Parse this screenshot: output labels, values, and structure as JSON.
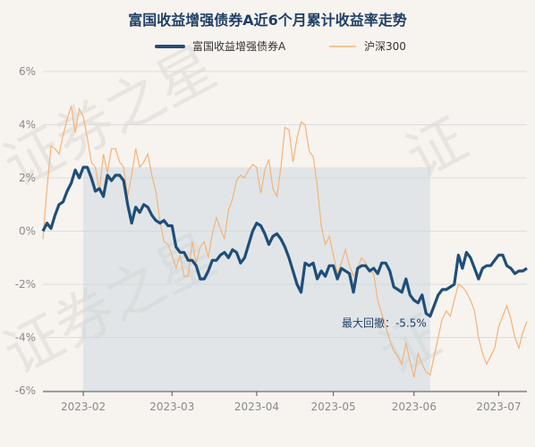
{
  "chart_data": {
    "type": "line",
    "title": "富国收益增强债券A近6个月累计收益率走势",
    "xlabel": "",
    "ylabel": "",
    "ylim": [
      -6,
      6
    ],
    "y_ticks": [
      "6%",
      "4%",
      "2%",
      "0%",
      "-2%",
      "-4%",
      "-6%"
    ],
    "x_tick_labels": [
      "2023-02",
      "2023-03",
      "2023-04",
      "2023-05",
      "2023-06",
      "2023-07"
    ],
    "x_range": [
      0,
      120
    ],
    "x_tick_positions": [
      10,
      32,
      53,
      72,
      92,
      113
    ],
    "legend_position": "top-center",
    "grid": true,
    "colors": {
      "fund": "#1f4e79",
      "index": "#f2b47a",
      "drawdown": "#c5d4de",
      "title": "#1f3f66"
    },
    "annotation": {
      "text": "最大回撤：-5.5%"
    },
    "drawdown_region": {
      "x_start": 10,
      "x_end": 96
    },
    "series": [
      {
        "name": "富国收益增强债券A",
        "x": [
          0,
          1,
          2,
          3,
          4,
          5,
          6,
          7,
          8,
          9,
          10,
          11,
          12,
          13,
          14,
          15,
          16,
          17,
          18,
          19,
          20,
          21,
          22,
          23,
          24,
          25,
          26,
          27,
          28,
          29,
          30,
          31,
          32,
          33,
          34,
          35,
          36,
          37,
          38,
          39,
          40,
          41,
          42,
          43,
          44,
          45,
          46,
          47,
          48,
          49,
          50,
          51,
          52,
          53,
          54,
          55,
          56,
          57,
          58,
          59,
          60,
          61,
          62,
          63,
          64,
          65,
          66,
          67,
          68,
          69,
          70,
          71,
          72,
          73,
          74,
          75,
          76,
          77,
          78,
          79,
          80,
          81,
          82,
          83,
          84,
          85,
          86,
          87,
          88,
          89,
          90,
          91,
          92,
          93,
          94,
          95,
          96,
          97,
          98,
          99,
          100,
          101,
          102,
          103,
          104,
          105,
          106,
          107,
          108,
          109,
          110,
          111,
          112,
          113,
          114,
          115,
          116,
          117,
          118,
          119,
          120
        ],
        "values": [
          0,
          0.3,
          0.1,
          0.6,
          1.0,
          1.1,
          1.5,
          1.8,
          2.3,
          2.0,
          2.4,
          2.4,
          2.0,
          1.5,
          1.6,
          1.3,
          2.1,
          1.9,
          2.1,
          2.1,
          1.9,
          1.0,
          0.3,
          0.9,
          0.7,
          1.0,
          0.9,
          0.6,
          0.4,
          0.3,
          0.4,
          0.2,
          0.2,
          -0.6,
          -0.8,
          -0.8,
          -1.1,
          -1.1,
          -1.3,
          -1.8,
          -1.8,
          -1.5,
          -1.1,
          -1.1,
          -0.9,
          -0.8,
          -1.0,
          -0.7,
          -0.8,
          -1.2,
          -1.0,
          -0.5,
          0.0,
          0.3,
          0.2,
          -0.1,
          -0.5,
          -0.2,
          -0.1,
          -0.3,
          -0.6,
          -1.0,
          -1.5,
          -2.0,
          -2.3,
          -1.2,
          -1.3,
          -1.2,
          -1.8,
          -1.5,
          -1.7,
          -1.3,
          -1.3,
          -1.8,
          -1.4,
          -1.5,
          -1.6,
          -2.3,
          -1.4,
          -1.3,
          -1.3,
          -1.5,
          -1.4,
          -1.6,
          -1.2,
          -1.2,
          -1.5,
          -2.1,
          -2.2,
          -2.3,
          -1.8,
          -2.4,
          -2.6,
          -2.7,
          -2.4,
          -3.1,
          -3.2,
          -2.8,
          -2.4,
          -2.2,
          -2.2,
          -2.1,
          -2.0,
          -0.9,
          -1.4,
          -0.8,
          -1.0,
          -1.4,
          -1.8,
          -1.4,
          -1.3,
          -1.3,
          -1.1,
          -0.9,
          -0.9,
          -1.3,
          -1.4,
          -1.6,
          -1.5,
          -1.5,
          -1.4
        ]
      },
      {
        "name": "沪深300",
        "x": [
          0,
          1,
          2,
          3,
          4,
          5,
          6,
          7,
          8,
          9,
          10,
          11,
          12,
          13,
          14,
          15,
          16,
          17,
          18,
          19,
          20,
          21,
          22,
          23,
          24,
          25,
          26,
          27,
          28,
          29,
          30,
          31,
          32,
          33,
          34,
          35,
          36,
          37,
          38,
          39,
          40,
          41,
          42,
          43,
          44,
          45,
          46,
          47,
          48,
          49,
          50,
          51,
          52,
          53,
          54,
          55,
          56,
          57,
          58,
          59,
          60,
          61,
          62,
          63,
          64,
          65,
          66,
          67,
          68,
          69,
          70,
          71,
          72,
          73,
          74,
          75,
          76,
          77,
          78,
          79,
          80,
          81,
          82,
          83,
          84,
          85,
          86,
          87,
          88,
          89,
          90,
          91,
          92,
          93,
          94,
          95,
          96,
          97,
          98,
          99,
          100,
          101,
          102,
          103,
          104,
          105,
          106,
          107,
          108,
          109,
          110,
          111,
          112,
          113,
          114,
          115,
          116,
          117,
          118,
          119,
          120
        ],
        "values": [
          -0.3,
          1.6,
          3.2,
          3.1,
          2.9,
          3.6,
          4.2,
          4.7,
          3.7,
          4.6,
          4.3,
          3.5,
          2.6,
          2.4,
          1.5,
          2.9,
          2.2,
          3.1,
          3.1,
          2.6,
          2.4,
          1.3,
          2.1,
          3.1,
          2.4,
          2.6,
          2.9,
          2.1,
          1.5,
          0.4,
          -0.4,
          -0.5,
          -0.9,
          -1.4,
          -0.9,
          -1.7,
          -1.7,
          -0.4,
          -1.2,
          -0.6,
          -0.4,
          -1.0,
          -0.1,
          0.5,
          0.1,
          -0.3,
          0.8,
          1.2,
          1.9,
          2.1,
          2.0,
          2.3,
          2.5,
          2.4,
          1.4,
          2.3,
          2.7,
          1.6,
          1.3,
          2.4,
          3.9,
          3.8,
          2.6,
          3.5,
          4.1,
          4.0,
          3.0,
          2.8,
          1.7,
          0.2,
          -0.5,
          -0.2,
          -0.9,
          -1.6,
          -1.2,
          -0.7,
          -1.3,
          -1.7,
          -1.4,
          -1.0,
          -1.2,
          -1.5,
          -1.6,
          -2.6,
          -3.1,
          -3.6,
          -4.1,
          -4.5,
          -4.7,
          -5.0,
          -4.2,
          -4.9,
          -5.5,
          -4.6,
          -5.0,
          -5.3,
          -5.4,
          -4.7,
          -4.0,
          -3.3,
          -3.0,
          -3.2,
          -2.6,
          -2.0,
          -2.1,
          -2.3,
          -2.6,
          -3.0,
          -4.0,
          -4.6,
          -5.0,
          -4.7,
          -4.4,
          -3.6,
          -3.2,
          -2.8,
          -3.3,
          -4.0,
          -4.4,
          -3.8,
          -3.4
        ]
      }
    ]
  }
}
